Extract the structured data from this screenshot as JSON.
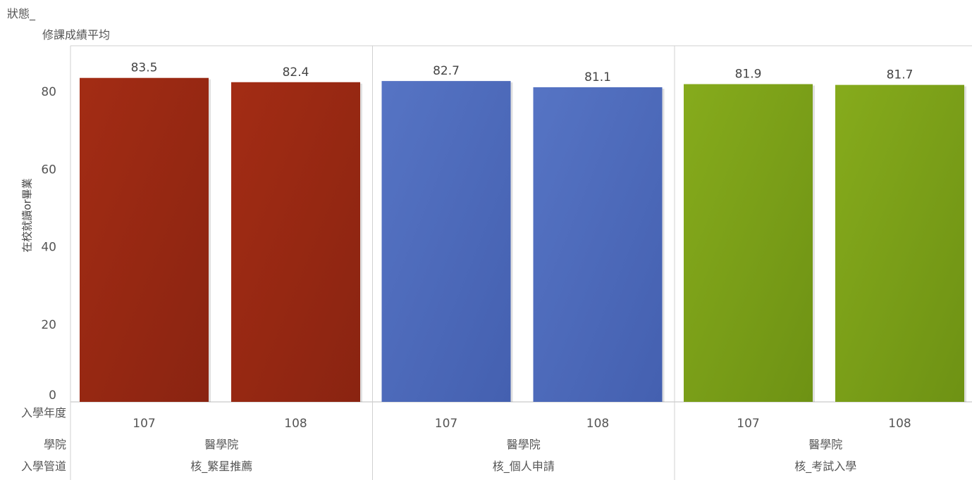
{
  "header": {
    "state_label": "狀態_",
    "measure_label": "修課成績平均"
  },
  "chart_data": {
    "type": "bar",
    "ylabel": "在校就讀or畢業",
    "ylim": [
      0,
      92
    ],
    "yticks": [
      0,
      20,
      40,
      60,
      80
    ],
    "row_headers": [
      "入學年度",
      "學院",
      "入學管道"
    ],
    "groups": [
      {
        "channel": "核_繁星推薦",
        "college": "醫學院",
        "color": "#a32c14",
        "color_dark": "#8a2411",
        "bars": [
          {
            "year": "107",
            "value": 83.5
          },
          {
            "year": "108",
            "value": 82.4
          }
        ]
      },
      {
        "channel": "核_個人申請",
        "college": "醫學院",
        "color": "#5674c4",
        "color_dark": "#4460b0",
        "bars": [
          {
            "year": "107",
            "value": 82.7
          },
          {
            "year": "108",
            "value": 81.1
          }
        ]
      },
      {
        "channel": "核_考試入學",
        "college": "醫學院",
        "color": "#86ab1c",
        "color_dark": "#6e9214",
        "bars": [
          {
            "year": "107",
            "value": 81.9
          },
          {
            "year": "108",
            "value": 81.7
          }
        ]
      }
    ]
  }
}
